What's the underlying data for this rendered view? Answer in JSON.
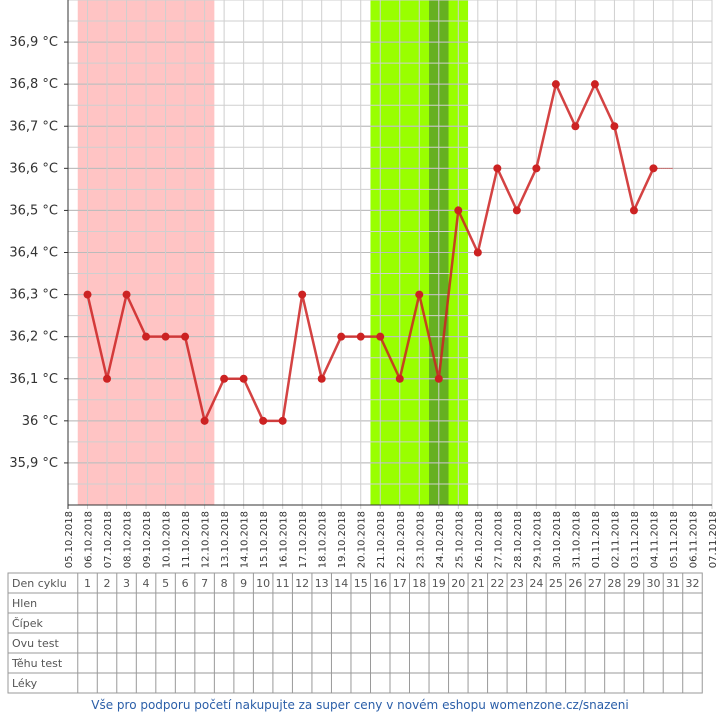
{
  "chart_data": {
    "type": "line",
    "x": [
      "05.10.2018",
      "06.10.2018",
      "07.10.2018",
      "08.10.2018",
      "09.10.2018",
      "10.10.2018",
      "11.10.2018",
      "12.10.2018",
      "13.10.2018",
      "14.10.2018",
      "15.10.2018",
      "16.10.2018",
      "17.10.2018",
      "18.10.2018",
      "19.10.2018",
      "20.10.2018",
      "21.10.2018",
      "22.10.2018",
      "23.10.2018",
      "24.10.2018",
      "25.10.2018",
      "26.10.2018",
      "27.10.2018",
      "28.10.2018",
      "29.10.2018",
      "30.10.2018",
      "31.10.2018",
      "01.11.2018",
      "02.11.2018",
      "03.11.2018",
      "04.11.2018",
      "05.11.2018",
      "06.11.2018",
      "07.11.2018"
    ],
    "series": [
      {
        "color": "#cc2222",
        "values": [
          null,
          36.3,
          36.1,
          36.3,
          36.2,
          36.2,
          36.2,
          36.0,
          36.1,
          36.1,
          36.0,
          36.0,
          36.3,
          36.1,
          36.2,
          36.2,
          36.2,
          36.1,
          36.3,
          36.1,
          36.5,
          36.4,
          36.6,
          36.5,
          36.6,
          36.8,
          36.7,
          36.8,
          36.7,
          36.5,
          36.6,
          null,
          null,
          null
        ]
      }
    ],
    "ylim": [
      35.8,
      37.0
    ],
    "yticks": [
      {
        "value": 35.9,
        "label": "35,9 °C"
      },
      {
        "value": 36.0,
        "label": "36 °C"
      },
      {
        "value": 36.1,
        "label": "36,1 °C"
      },
      {
        "value": 36.2,
        "label": "36,2 °C"
      },
      {
        "value": 36.3,
        "label": "36,3 °C"
      },
      {
        "value": 36.4,
        "label": "36,4 °C"
      },
      {
        "value": 36.5,
        "label": "36,5 °C"
      },
      {
        "value": 36.6,
        "label": "36,6 °C"
      },
      {
        "value": 36.7,
        "label": "36,7 °C"
      },
      {
        "value": 36.8,
        "label": "36,8 °C"
      },
      {
        "value": 36.9,
        "label": "36,9 °C"
      }
    ],
    "grid": true,
    "phases": [
      {
        "start": "06.10.2018",
        "end": "12.10.2018",
        "color": "#ffc4c4"
      },
      {
        "start": "21.10.2018",
        "end": "25.10.2018",
        "color": "#99ff00"
      },
      {
        "start": "24.10.2018",
        "end": "24.10.2018",
        "color": "#66b021"
      }
    ]
  },
  "table": {
    "rows": [
      "Den cyklu",
      "Hlen",
      "Čípek",
      "Ovu test",
      "Těhu test",
      "Léky"
    ],
    "cycle_days": [
      1,
      2,
      3,
      4,
      5,
      6,
      7,
      8,
      9,
      10,
      11,
      12,
      13,
      14,
      15,
      16,
      17,
      18,
      19,
      20,
      21,
      22,
      23,
      24,
      25,
      26,
      27,
      28,
      29,
      30,
      31,
      32
    ]
  },
  "footer": "Vše pro podporu početí nakupujte za super ceny v novém eshopu womenzone.cz/snazeni"
}
